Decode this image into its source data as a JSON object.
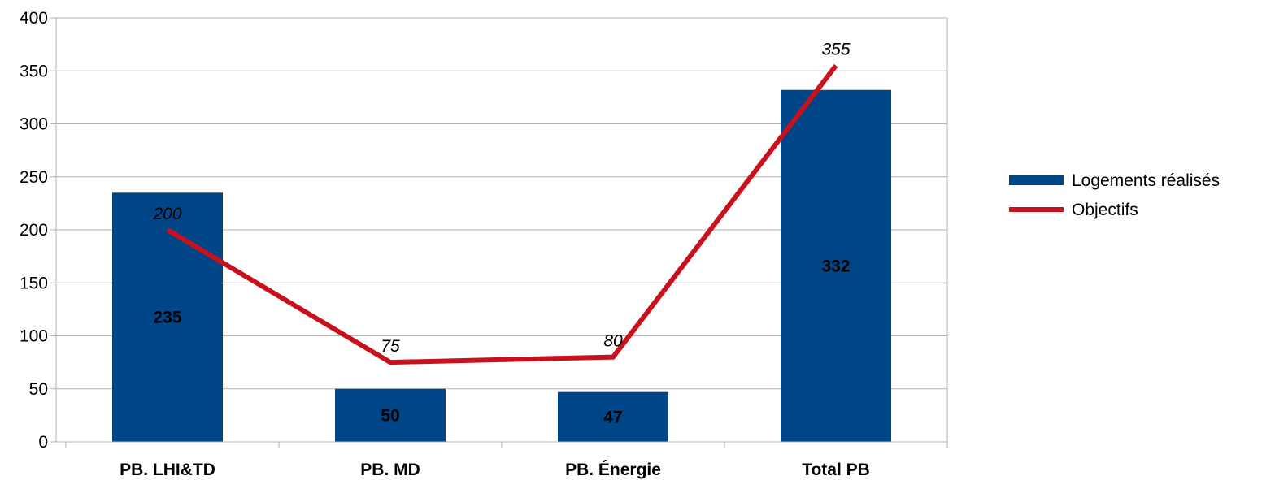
{
  "chart_data": {
    "type": "bar",
    "categories": [
      "PB. LHI&TD",
      "PB. MD",
      "PB. Énergie",
      "Total PB"
    ],
    "series": [
      {
        "name": "Logements réalisés",
        "type": "bar",
        "color": "#004586",
        "values": [
          235,
          50,
          47,
          332
        ]
      },
      {
        "name": "Objectifs",
        "type": "line",
        "color": "#c9111e",
        "values": [
          200,
          75,
          80,
          355
        ]
      }
    ],
    "ylim": [
      0,
      400
    ],
    "yticks": [
      "0",
      "50",
      "100",
      "150",
      "200",
      "250",
      "300",
      "350",
      "400"
    ],
    "grid": true,
    "legend": "right"
  }
}
